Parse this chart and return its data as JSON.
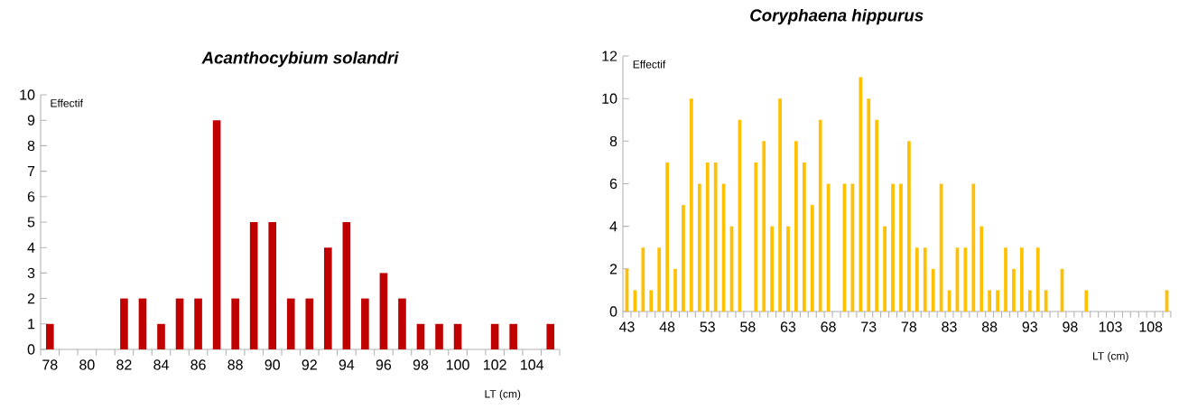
{
  "chart_data": [
    {
      "type": "bar",
      "title": "Acanthocybium solandri",
      "xlabel": "LT (cm)",
      "ylabel": "Effectif",
      "color": "#c00000",
      "categories": [
        "78",
        null,
        "80",
        null,
        "82",
        null,
        "84",
        null,
        "86",
        null,
        "88",
        null,
        "90",
        null,
        "92",
        null,
        "94",
        null,
        "96",
        null,
        "98",
        null,
        "100",
        null,
        "102",
        null,
        "104",
        null
      ],
      "values": [
        1,
        0,
        0,
        0,
        2,
        2,
        1,
        2,
        2,
        9,
        2,
        5,
        5,
        2,
        2,
        4,
        5,
        2,
        3,
        2,
        1,
        1,
        1,
        0,
        1,
        1,
        0,
        1
      ],
      "ylim": [
        0,
        10
      ],
      "yticks": [
        0,
        1,
        2,
        3,
        4,
        5,
        6,
        7,
        8,
        9,
        10
      ]
    },
    {
      "type": "bar",
      "title": "Coryphaena hippurus",
      "xlabel": "LT (cm)",
      "ylabel": "Effectif",
      "color": "#ffc000",
      "categories": [
        "43",
        null,
        null,
        null,
        null,
        "48",
        null,
        null,
        null,
        null,
        "53",
        null,
        null,
        null,
        null,
        "58",
        null,
        null,
        null,
        null,
        "63",
        null,
        null,
        null,
        null,
        "68",
        null,
        null,
        null,
        null,
        "73",
        null,
        null,
        null,
        null,
        "78",
        null,
        null,
        null,
        null,
        "83",
        null,
        null,
        null,
        null,
        "88",
        null,
        null,
        null,
        null,
        "93",
        null,
        null,
        null,
        null,
        "98",
        null,
        null,
        null,
        null,
        "103",
        null,
        null,
        null,
        null,
        "108",
        null,
        null
      ],
      "values": [
        2,
        1,
        3,
        1,
        3,
        7,
        2,
        5,
        10,
        6,
        7,
        7,
        6,
        4,
        9,
        0,
        7,
        8,
        4,
        10,
        4,
        8,
        7,
        5,
        9,
        6,
        0,
        6,
        6,
        11,
        10,
        9,
        4,
        6,
        6,
        8,
        3,
        3,
        2,
        6,
        1,
        3,
        3,
        6,
        4,
        1,
        1,
        3,
        2,
        3,
        1,
        3,
        1,
        0,
        2,
        0,
        0,
        1,
        0,
        0,
        0,
        0,
        0,
        0,
        0,
        0,
        0,
        1
      ],
      "ylim": [
        0,
        12
      ],
      "yticks": [
        0,
        2,
        4,
        6,
        8,
        10,
        12
      ]
    }
  ]
}
